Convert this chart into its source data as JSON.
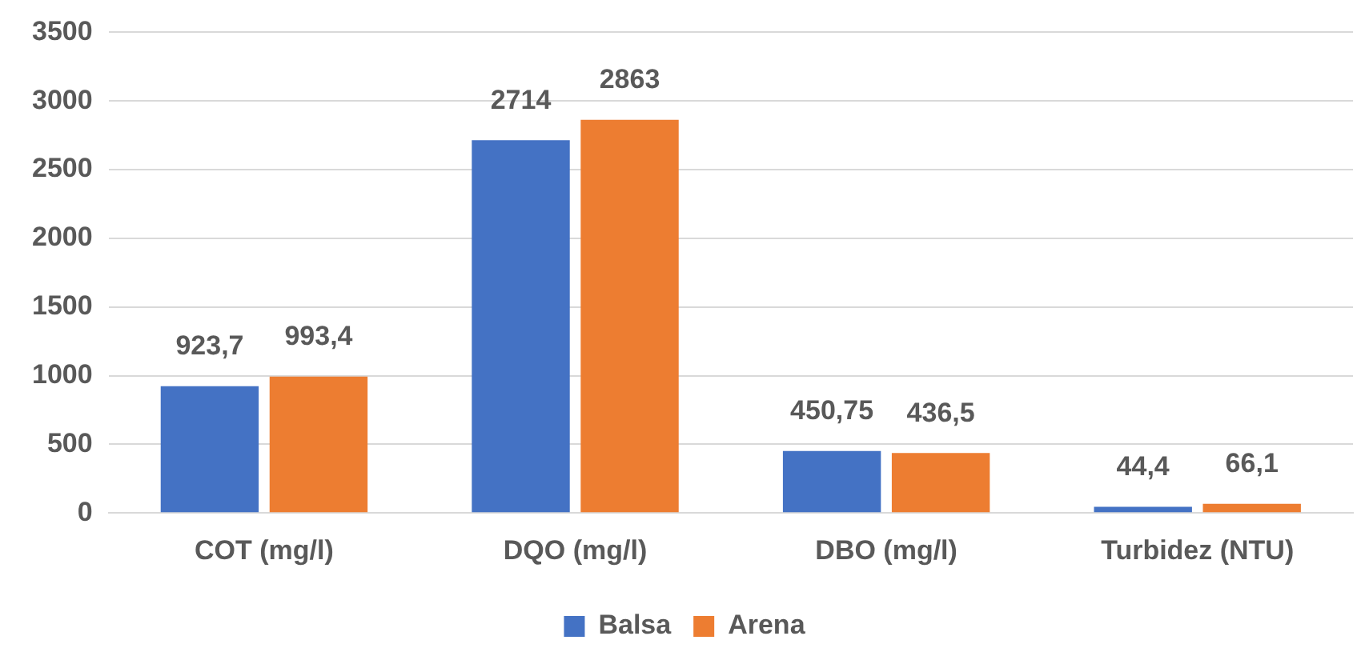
{
  "chart_data": {
    "type": "bar",
    "categories": [
      "COT (mg/l)",
      "DQO (mg/l)",
      "DBO (mg/l)",
      "Turbidez (NTU)"
    ],
    "series": [
      {
        "name": "Balsa",
        "color": "#4472c4",
        "values": [
          923.7,
          2714,
          450.75,
          44.4
        ],
        "value_labels": [
          "923,7",
          "2714",
          "450,75",
          "44,4"
        ]
      },
      {
        "name": "Arena",
        "color": "#ed7d31",
        "values": [
          993.4,
          2863,
          436.5,
          66.1
        ],
        "value_labels": [
          "993,4",
          "2863",
          "436,5",
          "66,1"
        ]
      }
    ],
    "ylim": [
      0,
      3500
    ],
    "yticks": [
      0,
      500,
      1000,
      1500,
      2000,
      2500,
      3000,
      3500
    ],
    "grid": "y",
    "legend": "bottom"
  }
}
